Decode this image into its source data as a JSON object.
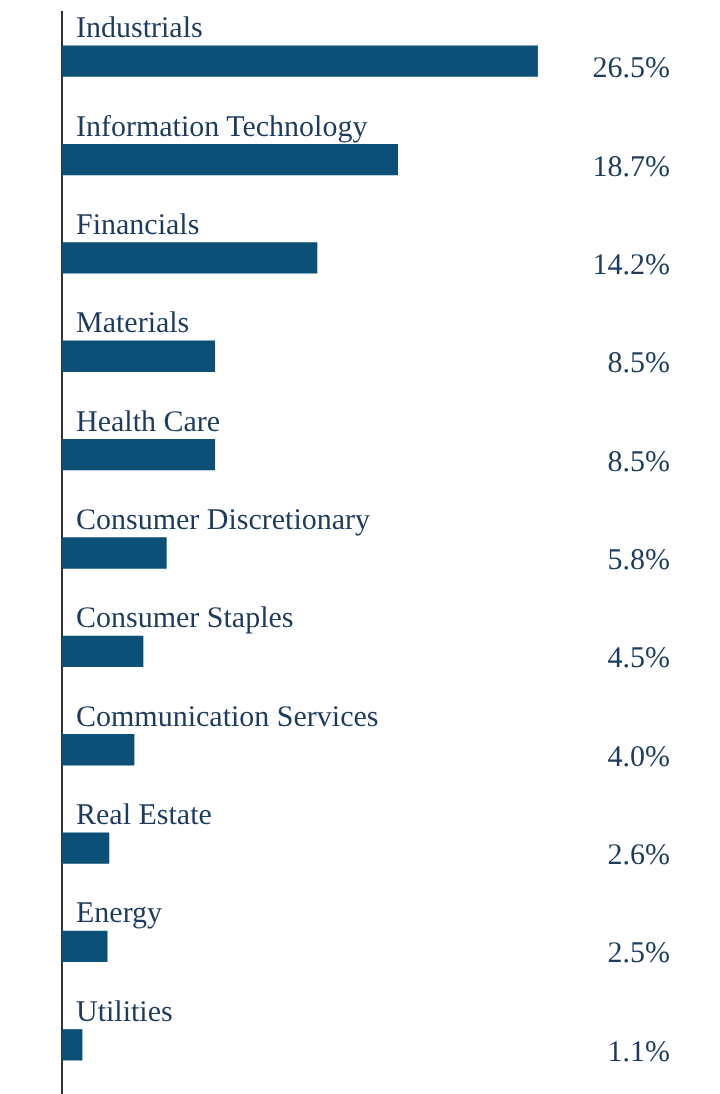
{
  "chart_data": {
    "type": "bar",
    "orientation": "horizontal",
    "categories": [
      "Industrials",
      "Information Technology",
      "Financials",
      "Materials",
      "Health Care",
      "Consumer Discretionary",
      "Consumer Staples",
      "Communication Services",
      "Real Estate",
      "Energy",
      "Utilities"
    ],
    "values": [
      26.5,
      18.7,
      14.2,
      8.5,
      8.5,
      5.8,
      4.5,
      4.0,
      2.6,
      2.5,
      1.1
    ],
    "value_labels": [
      "26.5%",
      "18.7%",
      "14.2%",
      "8.5%",
      "8.5%",
      "5.8%",
      "4.5%",
      "4.0%",
      "2.6%",
      "2.5%",
      "1.1%"
    ],
    "color": "#0d5077"
  }
}
